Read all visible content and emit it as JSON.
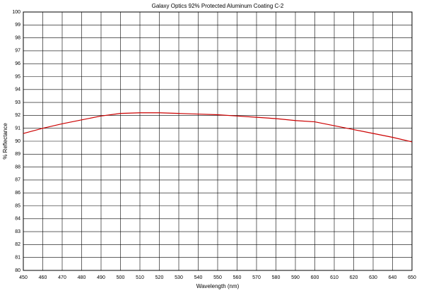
{
  "chart_data": {
    "type": "line",
    "title": "Galaxy Optics 92% Protected Aluminum Coating C-2",
    "x_label": "Wavelength (nm)",
    "y_label": "% Reflectance",
    "x": [
      450,
      460,
      470,
      480,
      490,
      500,
      510,
      520,
      530,
      540,
      550,
      560,
      570,
      580,
      590,
      600,
      610,
      620,
      630,
      640,
      650
    ],
    "series": [
      {
        "name": "Reflectance",
        "color": "#cc0000",
        "values": [
          90.6,
          91.0,
          91.35,
          91.65,
          91.95,
          92.15,
          92.2,
          92.2,
          92.15,
          92.1,
          92.05,
          91.95,
          91.85,
          91.75,
          91.6,
          91.5,
          91.2,
          90.9,
          90.6,
          90.3,
          89.95
        ]
      }
    ],
    "xlim": [
      450,
      650
    ],
    "ylim": [
      80,
      100
    ],
    "xticks": [
      450,
      460,
      470,
      480,
      490,
      500,
      510,
      520,
      530,
      540,
      550,
      560,
      570,
      580,
      590,
      600,
      610,
      620,
      630,
      640,
      650
    ],
    "yticks": [
      80,
      81,
      82,
      83,
      84,
      85,
      86,
      87,
      88,
      89,
      90,
      91,
      92,
      93,
      94,
      95,
      96,
      97,
      98,
      99,
      100
    ],
    "grid": true
  }
}
